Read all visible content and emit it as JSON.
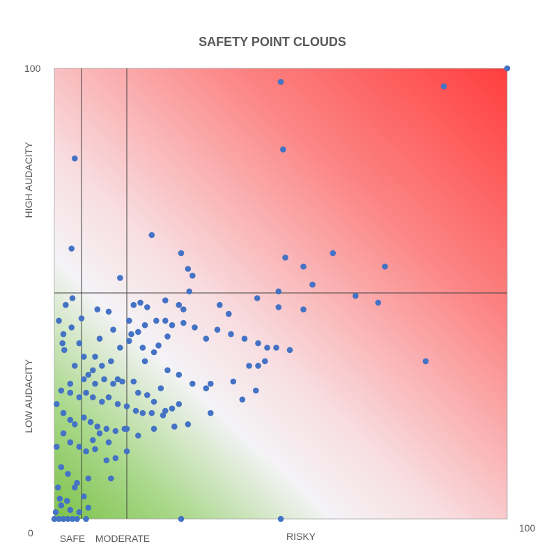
{
  "chart_data": {
    "type": "scatter",
    "title": "SAFETY POINT CLOUDS",
    "xlim": [
      0,
      100
    ],
    "ylim": [
      0,
      100
    ],
    "x_tick_labels": {
      "min": "0",
      "max": "100"
    },
    "y_tick_labels": {
      "max": "100"
    },
    "x_zone_labels": [
      "SAFE",
      "MODERATE",
      "RISKY"
    ],
    "y_zone_labels": [
      "LOW AUDACITY",
      "HIGH AUDACITY"
    ],
    "dividers": {
      "x": [
        6,
        16
      ],
      "y": 50
    },
    "grid": false,
    "legend": "none",
    "colors": {
      "point": "#4472C4",
      "safe_gradient": "#7CC148",
      "risky_gradient": "#FF3B3B",
      "divider": "#404040",
      "text": "#595959"
    },
    "points": [
      [
        100,
        100
      ],
      [
        50,
        97
      ],
      [
        86,
        96
      ],
      [
        50.5,
        82
      ],
      [
        4.5,
        80
      ],
      [
        3.8,
        60
      ],
      [
        21.5,
        63
      ],
      [
        28,
        59
      ],
      [
        29.5,
        55.5
      ],
      [
        30.5,
        54
      ],
      [
        14.5,
        53.5
      ],
      [
        51,
        58
      ],
      [
        61.5,
        59
      ],
      [
        73,
        56
      ],
      [
        55,
        56
      ],
      [
        57,
        52
      ],
      [
        49.5,
        50.5
      ],
      [
        29.8,
        50.5
      ],
      [
        71.5,
        48
      ],
      [
        66.5,
        49.5
      ],
      [
        55,
        46.5
      ],
      [
        49.5,
        47
      ],
      [
        44.8,
        49
      ],
      [
        36.5,
        47.5
      ],
      [
        38.5,
        45.5
      ],
      [
        28.5,
        46.5
      ],
      [
        27.5,
        47.5
      ],
      [
        24.5,
        48.5
      ],
      [
        20.5,
        47
      ],
      [
        19,
        48
      ],
      [
        17.5,
        47.5
      ],
      [
        16.5,
        44
      ],
      [
        12,
        46
      ],
      [
        9.5,
        46.5
      ],
      [
        6,
        44.5
      ],
      [
        1,
        44
      ],
      [
        2,
        41
      ],
      [
        3.8,
        42.5
      ],
      [
        5.5,
        39
      ],
      [
        1.8,
        39
      ],
      [
        2.2,
        37.5
      ],
      [
        4.5,
        34
      ],
      [
        3.5,
        30
      ],
      [
        6.5,
        31
      ],
      [
        8.5,
        33
      ],
      [
        10.5,
        34
      ],
      [
        12.5,
        35
      ],
      [
        14.5,
        38
      ],
      [
        16.5,
        39.5
      ],
      [
        18.5,
        41.5
      ],
      [
        20,
        43
      ],
      [
        22.5,
        44
      ],
      [
        24.5,
        44
      ],
      [
        26,
        43
      ],
      [
        28.5,
        43.5
      ],
      [
        31,
        42.5
      ],
      [
        33.5,
        40
      ],
      [
        36,
        42
      ],
      [
        39,
        41
      ],
      [
        42,
        40
      ],
      [
        45,
        39
      ],
      [
        49,
        38
      ],
      [
        52,
        37.5
      ],
      [
        47,
        38
      ],
      [
        46.5,
        35
      ],
      [
        45,
        34
      ],
      [
        43,
        34
      ],
      [
        41.5,
        26.5
      ],
      [
        44.5,
        28.5
      ],
      [
        39.5,
        30.5
      ],
      [
        34.5,
        30
      ],
      [
        33.5,
        29
      ],
      [
        30.5,
        30
      ],
      [
        27.5,
        32
      ],
      [
        25,
        33
      ],
      [
        23.5,
        29
      ],
      [
        22,
        26
      ],
      [
        20.5,
        27.5
      ],
      [
        18.5,
        28
      ],
      [
        17.5,
        30.5
      ],
      [
        15,
        30.5
      ],
      [
        13,
        30
      ],
      [
        11,
        31
      ],
      [
        9,
        30
      ],
      [
        7.5,
        32
      ],
      [
        1.5,
        28.5
      ],
      [
        3.5,
        28
      ],
      [
        5.5,
        27
      ],
      [
        7,
        28
      ],
      [
        8.5,
        27
      ],
      [
        10.5,
        26
      ],
      [
        12,
        27
      ],
      [
        14,
        25.5
      ],
      [
        16,
        25
      ],
      [
        18,
        24
      ],
      [
        0.5,
        25.5
      ],
      [
        2,
        23.5
      ],
      [
        3.5,
        22
      ],
      [
        4.5,
        21
      ],
      [
        6.5,
        22.5
      ],
      [
        8,
        21.5
      ],
      [
        9.5,
        20.5
      ],
      [
        11.5,
        20
      ],
      [
        13.5,
        19.5
      ],
      [
        15.5,
        20
      ],
      [
        19.5,
        23.5
      ],
      [
        21.5,
        23.5
      ],
      [
        24.5,
        24
      ],
      [
        26,
        24.5
      ],
      [
        27.5,
        25.5
      ],
      [
        34.5,
        23.5
      ],
      [
        29.5,
        21
      ],
      [
        26.5,
        20.5
      ],
      [
        24,
        23
      ],
      [
        22,
        20
      ],
      [
        18.5,
        18.5
      ],
      [
        16,
        20
      ],
      [
        10,
        19
      ],
      [
        12,
        17
      ],
      [
        8.5,
        17.5
      ],
      [
        2,
        19
      ],
      [
        3.5,
        17
      ],
      [
        5.5,
        16
      ],
      [
        7,
        15
      ],
      [
        9,
        15.5
      ],
      [
        11.5,
        13
      ],
      [
        13.5,
        13.5
      ],
      [
        3,
        10
      ],
      [
        5,
        8
      ],
      [
        7.5,
        9
      ],
      [
        1.5,
        11.5
      ],
      [
        0.5,
        16
      ],
      [
        0.8,
        7
      ],
      [
        1.2,
        4.5
      ],
      [
        2.8,
        4
      ],
      [
        4.5,
        7
      ],
      [
        6.5,
        5
      ],
      [
        1.5,
        3
      ],
      [
        3.5,
        2
      ],
      [
        5.5,
        1.5
      ],
      [
        7.5,
        2.5
      ],
      [
        0.3,
        1.5
      ],
      [
        0,
        0
      ],
      [
        1,
        0
      ],
      [
        2,
        0
      ],
      [
        3,
        0
      ],
      [
        4,
        0
      ],
      [
        5,
        0
      ],
      [
        7,
        0
      ],
      [
        28,
        0
      ],
      [
        50,
        0
      ],
      [
        82,
        35
      ],
      [
        16,
        15
      ],
      [
        12.5,
        9
      ],
      [
        9,
        36
      ],
      [
        20,
        35
      ],
      [
        22,
        37
      ],
      [
        4,
        49
      ],
      [
        2.5,
        47.5
      ],
      [
        14,
        31
      ],
      [
        6.5,
        36
      ],
      [
        10,
        40
      ],
      [
        13,
        42
      ],
      [
        17,
        41
      ],
      [
        19.5,
        38
      ],
      [
        23,
        38.5
      ],
      [
        25,
        40.5
      ]
    ]
  }
}
